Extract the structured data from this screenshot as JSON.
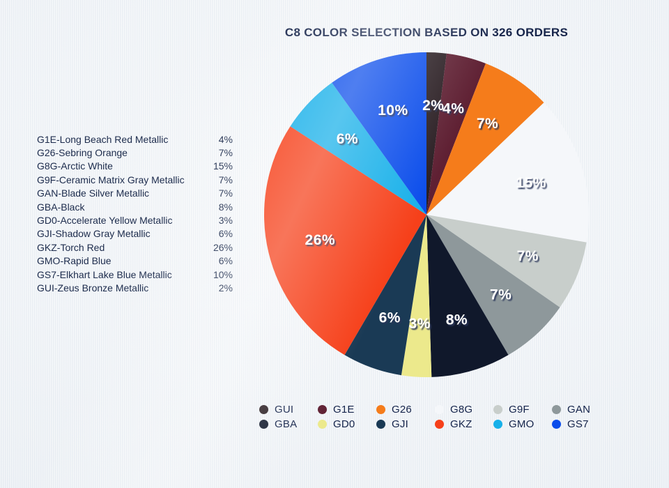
{
  "title": "C8 COLOR SELECTION BASED ON 326 ORDERS",
  "colors": {
    "background": "#edf1f5",
    "text_navy": "#1c2b4c",
    "pie_label_text": "#ffffff",
    "pie_label_shadow": "#2a3558"
  },
  "color_list": {
    "items": [
      {
        "label": "G1E-Long Beach Red Metallic",
        "value": "4%"
      },
      {
        "label": "G26-Sebring Orange",
        "value": "7%"
      },
      {
        "label": "G8G-Arctic White",
        "value": "15%"
      },
      {
        "label": "G9F-Ceramic Matrix Gray Metallic",
        "value": "7%"
      },
      {
        "label": "GAN-Blade Silver Metallic",
        "value": "7%"
      },
      {
        "label": "GBA-Black",
        "value": "8%"
      },
      {
        "label": "GD0-Accelerate Yellow Metallic",
        "value": "3%"
      },
      {
        "label": "GJI-Shadow Gray Metallic",
        "value": "6%"
      },
      {
        "label": "GKZ-Torch Red",
        "value": "26%"
      },
      {
        "label": "GMO-Rapid Blue",
        "value": "6%"
      },
      {
        "label": "GS7-Elkhart Lake Blue Metallic",
        "value": "10%"
      },
      {
        "label": "GUI-Zeus Bronze Metallic",
        "value": "2%"
      }
    ]
  },
  "chart_data": {
    "type": "pie",
    "title": "C8 COLOR SELECTION BASED ON 326 ORDERS",
    "orders_total": 326,
    "start_angle_deg": 0,
    "direction": "clockwise",
    "legend_position": "bottom",
    "slices": [
      {
        "code": "GUI",
        "name": "Zeus Bronze Metallic",
        "pct": 2,
        "label": "2%",
        "color": "#2a1e23"
      },
      {
        "code": "G1E",
        "name": "Long Beach Red Metallic",
        "pct": 4,
        "label": "4%",
        "color": "#5f2033"
      },
      {
        "code": "G26",
        "name": "Sebring Orange",
        "pct": 7,
        "label": "7%",
        "color": "#f57c1b"
      },
      {
        "code": "G8G",
        "name": "Arctic White",
        "pct": 15,
        "label": "15%",
        "color": "#f5f7fa"
      },
      {
        "code": "G9F",
        "name": "Ceramic Matrix Gray Metallic",
        "pct": 7,
        "label": "7%",
        "color": "#c8cecb"
      },
      {
        "code": "GAN",
        "name": "Blade Silver Metallic",
        "pct": 7,
        "label": "7%",
        "color": "#8e989b"
      },
      {
        "code": "GBA",
        "name": "Black",
        "pct": 8,
        "label": "8%",
        "color": "#10182b"
      },
      {
        "code": "GD0",
        "name": "Accelerate Yellow Metallic",
        "pct": 3,
        "label": "3%",
        "color": "#ece98c"
      },
      {
        "code": "GJI",
        "name": "Shadow Gray Metallic",
        "pct": 6,
        "label": "6%",
        "color": "#1a3a55"
      },
      {
        "code": "GKZ",
        "name": "Torch Red",
        "pct": 26,
        "label": "26%",
        "color": "#f6401a"
      },
      {
        "code": "GMO",
        "name": "Rapid Blue",
        "pct": 6,
        "label": "6%",
        "color": "#17b0e9"
      },
      {
        "code": "GS7",
        "name": "Elkhart Lake Blue Metallic",
        "pct": 10,
        "label": "10%",
        "color": "#0b4deb"
      }
    ],
    "legend_rows": [
      [
        "GUI",
        "G1E",
        "G26",
        "G8G",
        "G9F",
        "GAN"
      ],
      [
        "GBA",
        "GD0",
        "GJI",
        "GKZ",
        "GMO",
        "GS7"
      ]
    ]
  }
}
